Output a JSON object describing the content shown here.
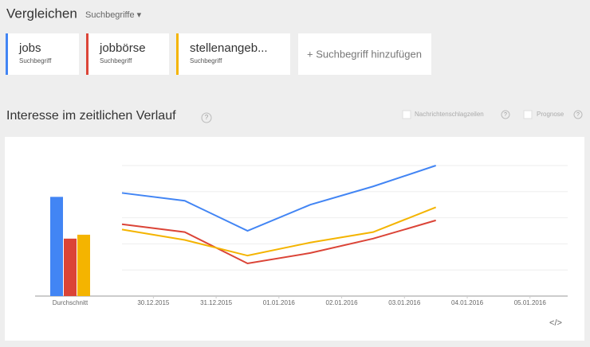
{
  "header": {
    "title": "Vergleichen",
    "dropdown": "Suchbegriffe ▾",
    "add_term": "+ Suchbegriff hinzufügen"
  },
  "section": {
    "title": "Interesse im zeitlichen Verlauf",
    "help": "?",
    "options": [
      {
        "label": "Nachrichtenschlagzeilen",
        "help": "?"
      },
      {
        "label": "Prognose",
        "help": "?"
      }
    ],
    "embed": "</>"
  },
  "chart_data": {
    "type": "line",
    "average_label": "Durchschnitt",
    "x": [
      -0.5,
      0.5,
      1.5,
      2.5,
      3.5,
      4.5
    ],
    "xlim": [
      -0.5,
      6.6
    ],
    "xticks": [
      {
        "value": 0,
        "label": "30.12.2015"
      },
      {
        "value": 1,
        "label": "31.12.2015"
      },
      {
        "value": 2,
        "label": "01.01.2016"
      },
      {
        "value": 3,
        "label": "02.01.2016"
      },
      {
        "value": 4,
        "label": "03.01.2016"
      },
      {
        "value": 5,
        "label": "04.01.2016"
      },
      {
        "value": 6,
        "label": "05.01.2016"
      }
    ],
    "ylim": [
      0,
      100
    ],
    "yticks": [
      0,
      20,
      40,
      60,
      80,
      100
    ],
    "grid": true,
    "series": [
      {
        "name": "jobs",
        "label": "Suchbegriff",
        "color": "#4285f4",
        "average": 76,
        "values": [
          79,
          73,
          50,
          70,
          84,
          100
        ]
      },
      {
        "name": "jobbörse",
        "label": "Suchbegriff",
        "color": "#db4437",
        "average": 44,
        "values": [
          55,
          49,
          25,
          33,
          44,
          58
        ]
      },
      {
        "name": "stellenangeb...",
        "label": "Suchbegriff",
        "color": "#f4b400",
        "average": 47,
        "values": [
          51,
          43,
          31,
          41,
          49,
          68
        ]
      }
    ]
  }
}
